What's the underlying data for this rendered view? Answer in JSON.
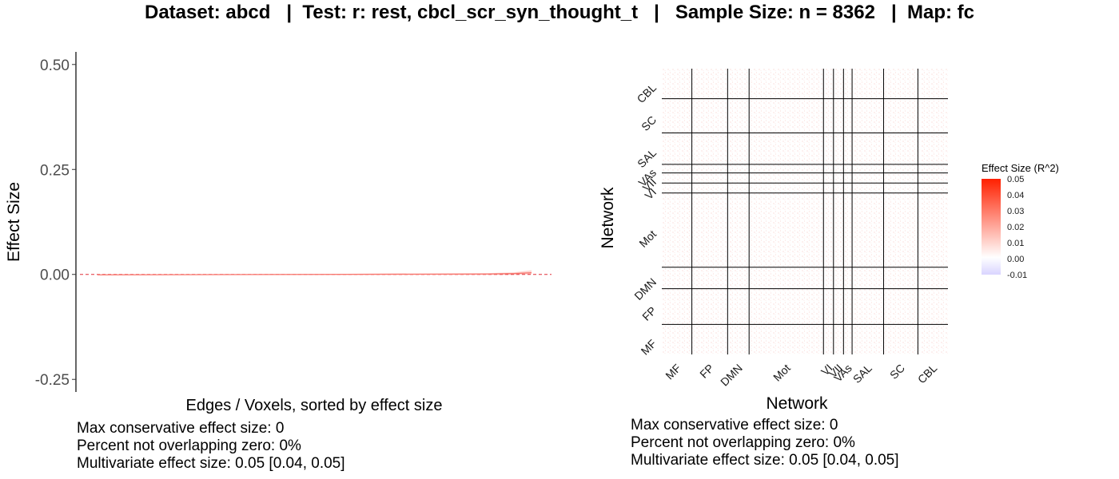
{
  "title": "Dataset: abcd   |  Test: r: rest, cbcl_scr_syn_thought_t   |   Sample Size: n = 8362   |  Map: fc",
  "chart_data": [
    {
      "type": "line",
      "ylabel": "Effect Size",
      "xlabel": "Edges / Voxels, sorted by effect size",
      "ylim": [
        -0.28,
        0.53
      ],
      "y_ticks": [
        "0.50",
        "0.25",
        "0.00",
        "-0.25"
      ],
      "y_tick_values": [
        0.5,
        0.25,
        0.0,
        -0.25
      ],
      "reference_line": 0.0,
      "series": [
        {
          "x": [
            0,
            0.5,
            0.9,
            0.96,
            1.0
          ],
          "values": [
            -0.001,
            0.0,
            0.001,
            0.002,
            0.004
          ]
        }
      ],
      "ci_upper": [
        0.0,
        0.001,
        0.003,
        0.005,
        0.01
      ],
      "ci_lower": [
        -0.002,
        -0.001,
        -0.001,
        -0.001,
        0.0
      ],
      "line_color": "#f8766d",
      "ref_color": "#e0303a",
      "stats": [
        "Max conservative effect size: 0",
        "Percent not overlapping zero: 0%",
        "Multivariate effect size: 0.05 [0.04, 0.05]"
      ]
    },
    {
      "type": "heatmap",
      "xlabel": "Network",
      "ylabel": "Network",
      "x_categories": [
        "MF",
        "FP",
        "DMN",
        "Mot",
        "VI",
        "VII",
        "VAs",
        "SAL",
        "SC",
        "CBL"
      ],
      "y_categories": [
        "CBL",
        "SC",
        "SAL",
        "VAs",
        "VII",
        "VI",
        "Mot",
        "DMN",
        "FP",
        "MF"
      ],
      "legend_title": "Effect Size (R^2)",
      "legend_ticks": [
        "0.05",
        "0.04",
        "0.03",
        "0.02",
        "0.01",
        "0.00",
        "-0.01"
      ],
      "legend_tick_values": [
        0.05,
        0.04,
        0.03,
        0.02,
        0.01,
        0.0,
        -0.01
      ],
      "color_scale": {
        "low": "#d9d4ff",
        "mid": "#ffffff",
        "high": "#ff2000",
        "min": -0.01,
        "max": 0.05
      },
      "values_range_observed": [
        0.0,
        0.003
      ],
      "stats": [
        "Max conservative effect size: 0",
        "Percent not overlapping zero: 0%",
        "Multivariate effect size: 0.05 [0.04, 0.05]"
      ]
    }
  ]
}
